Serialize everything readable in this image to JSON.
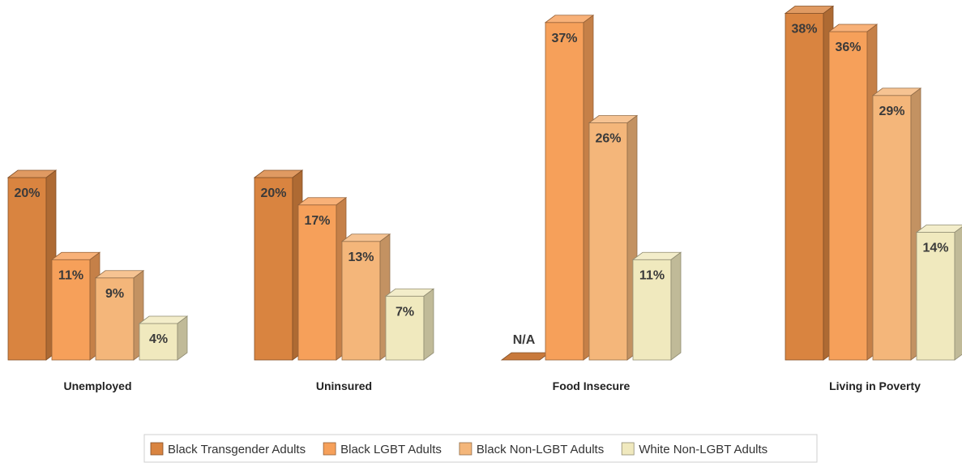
{
  "chart_data": {
    "type": "bar",
    "style": "3d",
    "categories": [
      "Unemployed",
      "Uninsured",
      "Food Insecure",
      "Living in Poverty"
    ],
    "series": [
      {
        "name": "Black Transgender Adults",
        "color": "#D98440",
        "values": [
          20,
          20,
          null,
          38
        ],
        "labels": [
          "20%",
          "20%",
          "N/A",
          "38%"
        ]
      },
      {
        "name": "Black LGBT Adults",
        "color": "#F6A05A",
        "values": [
          11,
          17,
          37,
          36
        ],
        "labels": [
          "11%",
          "17%",
          "37%",
          "36%"
        ]
      },
      {
        "name": "Black Non-LGBT Adults",
        "color": "#F4B67A",
        "values": [
          9,
          13,
          26,
          29
        ],
        "labels": [
          "9%",
          "13%",
          "26%",
          "29%"
        ]
      },
      {
        "name": "White Non-LGBT Adults",
        "color": "#F0E9BE",
        "values": [
          4,
          7,
          11,
          14
        ],
        "labels": [
          "4%",
          "7%",
          "11%",
          "14%"
        ]
      }
    ],
    "ylim": [
      0,
      40
    ],
    "grid": false,
    "legend_position": "bottom",
    "value_labels": "inside-top"
  }
}
